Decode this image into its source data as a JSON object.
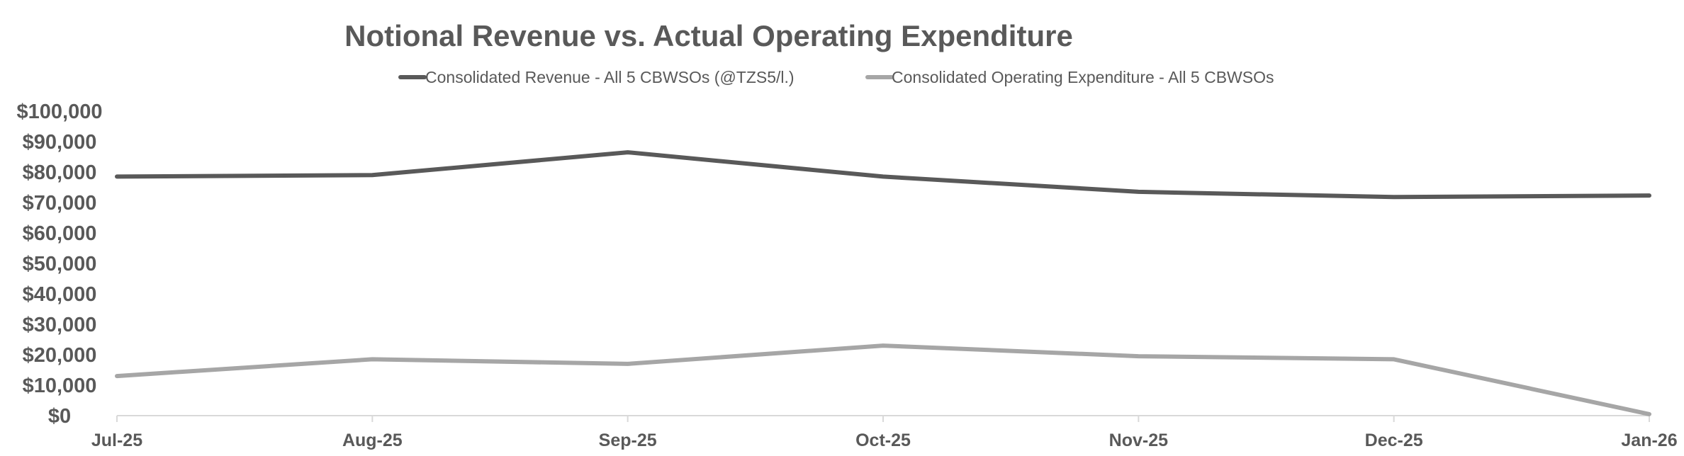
{
  "chart_data": {
    "type": "line",
    "title": "Notional Revenue vs. Actual Operating Expenditure",
    "xlabel": "",
    "ylabel": "",
    "categories": [
      "Jul-25",
      "Aug-25",
      "Sep-25",
      "Oct-25",
      "Nov-25",
      "Dec-25",
      "Jan-26"
    ],
    "ylim": [
      0,
      100000
    ],
    "yticks": [
      "$0",
      "$10,000",
      "$20,000",
      "$30,000",
      "$40,000",
      "$50,000",
      "$60,000",
      "$70,000",
      "$80,000",
      "$90,000",
      "$100,000"
    ],
    "ytick_values": [
      0,
      10000,
      20000,
      30000,
      40000,
      50000,
      60000,
      70000,
      80000,
      90000,
      100000
    ],
    "grid": false,
    "legend_position": "top",
    "series": [
      {
        "name": "Consolidated Revenue - All 5 CBWSOs (@TZS5/l.)",
        "color": "#595959",
        "values": [
          78500,
          79000,
          86500,
          78500,
          73500,
          71800,
          72300
        ]
      },
      {
        "name": "Consolidated Operating Expenditure - All 5 CBWSOs",
        "color": "#a6a6a6",
        "values": [
          13000,
          18500,
          17000,
          23000,
          19500,
          18500,
          500
        ]
      }
    ]
  }
}
